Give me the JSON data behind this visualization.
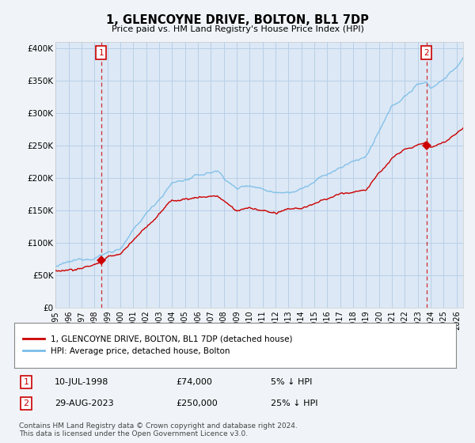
{
  "title": "1, GLENCOYNE DRIVE, BOLTON, BL1 7DP",
  "subtitle": "Price paid vs. HM Land Registry's House Price Index (HPI)",
  "sale1_date": 1998.53,
  "sale1_price": 74000,
  "sale1_label": "1",
  "sale2_date": 2023.66,
  "sale2_price": 250000,
  "sale2_label": "2",
  "hpi_color": "#7abde8",
  "sale_line_color": "#cc0000",
  "sale_dot_color": "#cc0000",
  "marker_box_color": "#cc0000",
  "background_color": "#f0f4f8",
  "plot_bg_color": "#dce8f5",
  "grid_color": "#b8cfe8",
  "ylim_min": 0,
  "ylim_max": 410000,
  "xlim_min": 1995,
  "xlim_max": 2026.5,
  "ytick_values": [
    0,
    50000,
    100000,
    150000,
    200000,
    250000,
    300000,
    350000,
    400000
  ],
  "ytick_labels": [
    "£0",
    "£50K",
    "£100K",
    "£150K",
    "£200K",
    "£250K",
    "£300K",
    "£350K",
    "£400K"
  ],
  "xtick_years": [
    1995,
    1996,
    1997,
    1998,
    1999,
    2000,
    2001,
    2002,
    2003,
    2004,
    2005,
    2006,
    2007,
    2008,
    2009,
    2010,
    2011,
    2012,
    2013,
    2014,
    2015,
    2016,
    2017,
    2018,
    2019,
    2020,
    2021,
    2022,
    2023,
    2024,
    2025,
    2026
  ],
  "legend_line1": "1, GLENCOYNE DRIVE, BOLTON, BL1 7DP (detached house)",
  "legend_line2": "HPI: Average price, detached house, Bolton",
  "table_row1": [
    "1",
    "10-JUL-1998",
    "£74,000",
    "5% ↓ HPI"
  ],
  "table_row2": [
    "2",
    "29-AUG-2023",
    "£250,000",
    "25% ↓ HPI"
  ],
  "footnote": "Contains HM Land Registry data © Crown copyright and database right 2024.\nThis data is licensed under the Open Government Licence v3.0."
}
